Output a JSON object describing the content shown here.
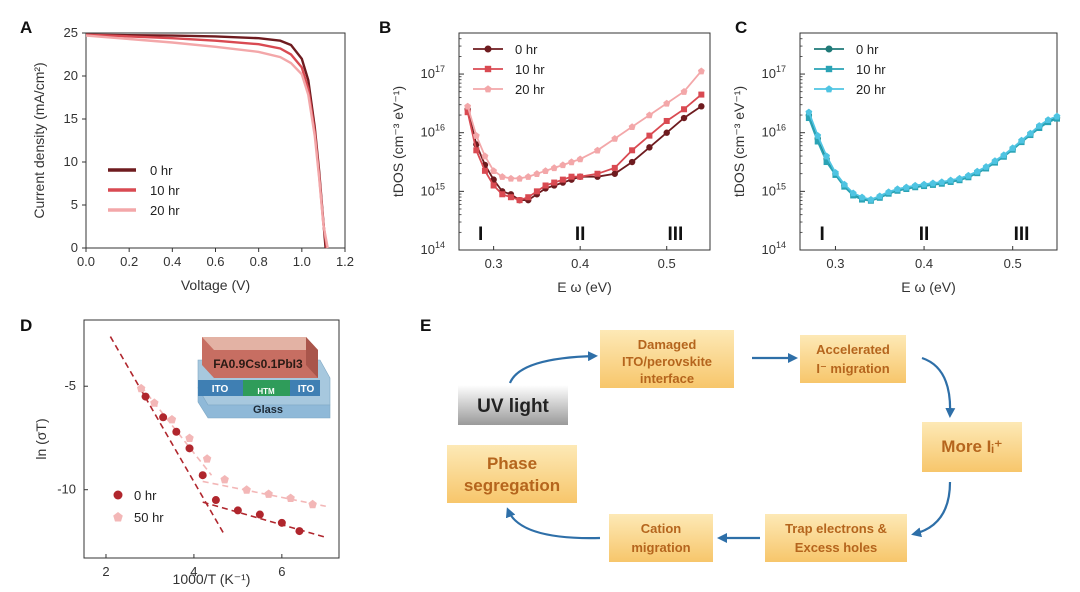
{
  "panels": {
    "A": "A",
    "B": "B",
    "C": "C",
    "D": "D",
    "E": "E"
  },
  "colors": {
    "red_dark": "#6e1b1f",
    "red_mid": "#d94a52",
    "red_light": "#f3a7a9",
    "crimson_d": "#b0262d",
    "pink_d": "#f3b7b7",
    "teal_dark": "#1f7a78",
    "teal_mid": "#2aa3b5",
    "teal_light": "#4fc4e2",
    "flow_box": "#f7c66b",
    "flow_text": "#b5651d",
    "arrow": "#2e6fa8"
  },
  "chart_data": [
    {
      "id": "A",
      "type": "line",
      "xlabel": "Voltage (V)",
      "ylabel": "Current density (mA/cm²)",
      "xlim": [
        0.0,
        1.2
      ],
      "ylim": [
        0,
        25
      ],
      "xticks": [
        "0.0",
        "0.2",
        "0.4",
        "0.6",
        "0.8",
        "1.0",
        "1.2"
      ],
      "yticks": [
        "0",
        "5",
        "10",
        "15",
        "20",
        "25"
      ],
      "series": [
        {
          "name": "0 hr",
          "color": "#6e1b1f",
          "x": [
            0.0,
            0.2,
            0.4,
            0.6,
            0.8,
            0.9,
            0.95,
            1.0,
            1.03,
            1.06,
            1.08,
            1.1,
            1.11
          ],
          "y": [
            24.8,
            24.75,
            24.7,
            24.6,
            24.4,
            24.1,
            23.6,
            22.0,
            19.5,
            14.0,
            9.0,
            3.0,
            0
          ]
        },
        {
          "name": "10 hr",
          "color": "#d94a52",
          "x": [
            0.0,
            0.2,
            0.4,
            0.6,
            0.8,
            0.9,
            0.95,
            1.0,
            1.03,
            1.06,
            1.08,
            1.1,
            1.115
          ],
          "y": [
            24.8,
            24.6,
            24.4,
            24.1,
            23.7,
            23.2,
            22.5,
            21.0,
            18.5,
            13.5,
            8.5,
            2.8,
            0
          ]
        },
        {
          "name": "20 hr",
          "color": "#f3a7a9",
          "x": [
            0.0,
            0.2,
            0.4,
            0.6,
            0.8,
            0.9,
            0.95,
            1.0,
            1.03,
            1.06,
            1.08,
            1.1,
            1.12
          ],
          "y": [
            24.7,
            24.3,
            23.9,
            23.4,
            22.8,
            22.2,
            21.5,
            20.2,
            17.8,
            13.0,
            8.2,
            2.7,
            0
          ]
        }
      ],
      "legend_position": "lower-left"
    },
    {
      "id": "B",
      "type": "line",
      "xlabel": "E ω (eV)",
      "ylabel": "tDOS (cm⁻³ eV⁻¹)",
      "xlim": [
        0.26,
        0.55
      ],
      "ylim_log10": [
        14,
        17.7
      ],
      "xticks": [
        "0.3",
        "0.4",
        "0.5"
      ],
      "ytick_exponents": [
        "14",
        "15",
        "16",
        "17"
      ],
      "regions": [
        "I",
        "II",
        "III"
      ],
      "series": [
        {
          "name": "0 hr",
          "color": "#6e1b1f",
          "x": [
            0.27,
            0.28,
            0.29,
            0.3,
            0.31,
            0.32,
            0.33,
            0.34,
            0.35,
            0.36,
            0.37,
            0.38,
            0.39,
            0.4,
            0.42,
            0.44,
            0.46,
            0.48,
            0.5,
            0.52,
            0.54
          ],
          "log10y": [
            16.4,
            15.8,
            15.45,
            15.2,
            15.0,
            14.95,
            14.85,
            14.85,
            14.95,
            15.05,
            15.1,
            15.15,
            15.2,
            15.25,
            15.25,
            15.3,
            15.5,
            15.75,
            16.0,
            16.25,
            16.45
          ]
        },
        {
          "name": "10 hr",
          "color": "#d94a52",
          "x": [
            0.27,
            0.28,
            0.29,
            0.3,
            0.31,
            0.32,
            0.33,
            0.34,
            0.35,
            0.36,
            0.37,
            0.38,
            0.39,
            0.4,
            0.42,
            0.44,
            0.46,
            0.48,
            0.5,
            0.52,
            0.54
          ],
          "log10y": [
            16.35,
            15.7,
            15.35,
            15.1,
            14.95,
            14.9,
            14.85,
            14.9,
            15.0,
            15.1,
            15.15,
            15.2,
            15.25,
            15.25,
            15.3,
            15.4,
            15.7,
            15.95,
            16.2,
            16.4,
            16.65
          ]
        },
        {
          "name": "20 hr",
          "color": "#f3a7a9",
          "x": [
            0.27,
            0.28,
            0.29,
            0.3,
            0.31,
            0.32,
            0.33,
            0.34,
            0.35,
            0.36,
            0.37,
            0.38,
            0.39,
            0.4,
            0.42,
            0.44,
            0.46,
            0.48,
            0.5,
            0.52,
            0.54
          ],
          "log10y": [
            16.45,
            15.95,
            15.6,
            15.35,
            15.25,
            15.22,
            15.22,
            15.25,
            15.3,
            15.35,
            15.4,
            15.45,
            15.5,
            15.55,
            15.7,
            15.9,
            16.1,
            16.3,
            16.5,
            16.7,
            17.05
          ]
        }
      ],
      "legend_position": "top-left"
    },
    {
      "id": "C",
      "type": "line",
      "xlabel": "E ω (eV)",
      "ylabel": "tDOS (cm⁻³ eV⁻¹)",
      "xlim": [
        0.26,
        0.55
      ],
      "ylim_log10": [
        14,
        17.7
      ],
      "xticks": [
        "0.3",
        "0.4",
        "0.5"
      ],
      "ytick_exponents": [
        "14",
        "15",
        "16",
        "17"
      ],
      "regions": [
        "I",
        "II",
        "III"
      ],
      "series": [
        {
          "name": "0 hr",
          "color": "#1f7a78",
          "x": [
            0.27,
            0.28,
            0.29,
            0.3,
            0.31,
            0.32,
            0.33,
            0.34,
            0.35,
            0.36,
            0.37,
            0.38,
            0.39,
            0.4,
            0.41,
            0.42,
            0.43,
            0.44,
            0.45,
            0.46,
            0.47,
            0.48,
            0.49,
            0.5,
            0.51,
            0.52,
            0.53,
            0.54,
            0.55
          ],
          "log10y": [
            16.3,
            15.9,
            15.55,
            15.3,
            15.1,
            14.95,
            14.88,
            14.85,
            14.9,
            14.97,
            15.02,
            15.05,
            15.08,
            15.1,
            15.12,
            15.14,
            15.17,
            15.2,
            15.25,
            15.32,
            15.4,
            15.5,
            15.6,
            15.72,
            15.85,
            15.97,
            16.1,
            16.2,
            16.25
          ]
        },
        {
          "name": "10 hr",
          "color": "#2aa3b5",
          "x": [
            0.27,
            0.28,
            0.29,
            0.3,
            0.31,
            0.32,
            0.33,
            0.34,
            0.35,
            0.36,
            0.37,
            0.38,
            0.39,
            0.4,
            0.41,
            0.42,
            0.43,
            0.44,
            0.45,
            0.46,
            0.47,
            0.48,
            0.49,
            0.5,
            0.51,
            0.52,
            0.53,
            0.54,
            0.55
          ],
          "log10y": [
            16.25,
            15.85,
            15.5,
            15.28,
            15.08,
            14.93,
            14.86,
            14.84,
            14.89,
            14.96,
            15.01,
            15.04,
            15.07,
            15.09,
            15.11,
            15.13,
            15.16,
            15.19,
            15.24,
            15.31,
            15.39,
            15.49,
            15.59,
            15.71,
            15.84,
            15.96,
            16.08,
            16.18,
            16.24
          ]
        },
        {
          "name": "20 hr",
          "color": "#4fc4e2",
          "x": [
            0.27,
            0.28,
            0.29,
            0.3,
            0.31,
            0.32,
            0.33,
            0.34,
            0.35,
            0.36,
            0.37,
            0.38,
            0.39,
            0.4,
            0.41,
            0.42,
            0.43,
            0.44,
            0.45,
            0.46,
            0.47,
            0.48,
            0.49,
            0.5,
            0.51,
            0.52,
            0.53,
            0.54,
            0.55
          ],
          "log10y": [
            16.35,
            15.95,
            15.6,
            15.32,
            15.12,
            14.97,
            14.9,
            14.86,
            14.92,
            14.99,
            15.04,
            15.07,
            15.1,
            15.12,
            15.14,
            15.16,
            15.19,
            15.22,
            15.27,
            15.34,
            15.42,
            15.52,
            15.62,
            15.74,
            15.87,
            15.99,
            16.12,
            16.22,
            16.28
          ]
        }
      ],
      "legend_position": "top-left"
    },
    {
      "id": "D",
      "type": "scatter",
      "xlabel": "1000/T (K⁻¹)",
      "ylabel": "ln (σT)",
      "xlim": [
        1.5,
        7.3
      ],
      "ylim": [
        -13.3,
        -1.8
      ],
      "xticks": [
        "2",
        "4",
        "6"
      ],
      "yticks": [
        "-5",
        "-10"
      ],
      "inset_labels": {
        "top_layer": "FA0.9Cs0.1PbI3",
        "left_ito": "ITO",
        "htm": "HTM",
        "right_ito": "ITO",
        "substrate": "Glass"
      },
      "series": [
        {
          "name": "0 hr",
          "color": "#b0262d",
          "x": [
            2.9,
            3.3,
            3.6,
            3.9,
            4.2,
            4.5,
            5.0,
            5.5,
            6.0,
            6.4
          ],
          "y": [
            -5.5,
            -6.5,
            -7.2,
            -8.0,
            -9.3,
            -10.5,
            -11.0,
            -11.2,
            -11.6,
            -12.0
          ]
        },
        {
          "name": "50 hr",
          "color": "#f3b7b7",
          "x": [
            2.8,
            3.1,
            3.5,
            3.9,
            4.3,
            4.7,
            5.2,
            5.7,
            6.2,
            6.7
          ],
          "y": [
            -5.1,
            -5.8,
            -6.6,
            -7.5,
            -8.5,
            -9.5,
            -10.0,
            -10.2,
            -10.4,
            -10.7
          ]
        }
      ],
      "fit_lines": [
        {
          "series": "0 hr",
          "x": [
            2.1,
            4.7
          ],
          "y": [
            -2.6,
            -12.2
          ]
        },
        {
          "series": "0 hr",
          "x": [
            4.2,
            7.0
          ],
          "y": [
            -10.6,
            -12.3
          ]
        },
        {
          "series": "50 hr",
          "x": [
            2.8,
            4.4
          ],
          "y": [
            -5.0,
            -9.3
          ]
        },
        {
          "series": "50 hr",
          "x": [
            4.2,
            7.0
          ],
          "y": [
            -9.6,
            -10.8
          ]
        }
      ],
      "legend_position": "lower-left"
    }
  ],
  "flow": {
    "uv_light": "UV light",
    "damaged": [
      "Damaged",
      "ITO/perovskite",
      "interface"
    ],
    "accelerated": [
      "Accelerated",
      "I⁻ migration"
    ],
    "more_ii": "More Iᵢ⁺",
    "trap": [
      "Trap electrons &",
      "Excess holes"
    ],
    "cation": [
      "Cation",
      "migration"
    ],
    "phase": [
      "Phase",
      "segregation"
    ]
  }
}
